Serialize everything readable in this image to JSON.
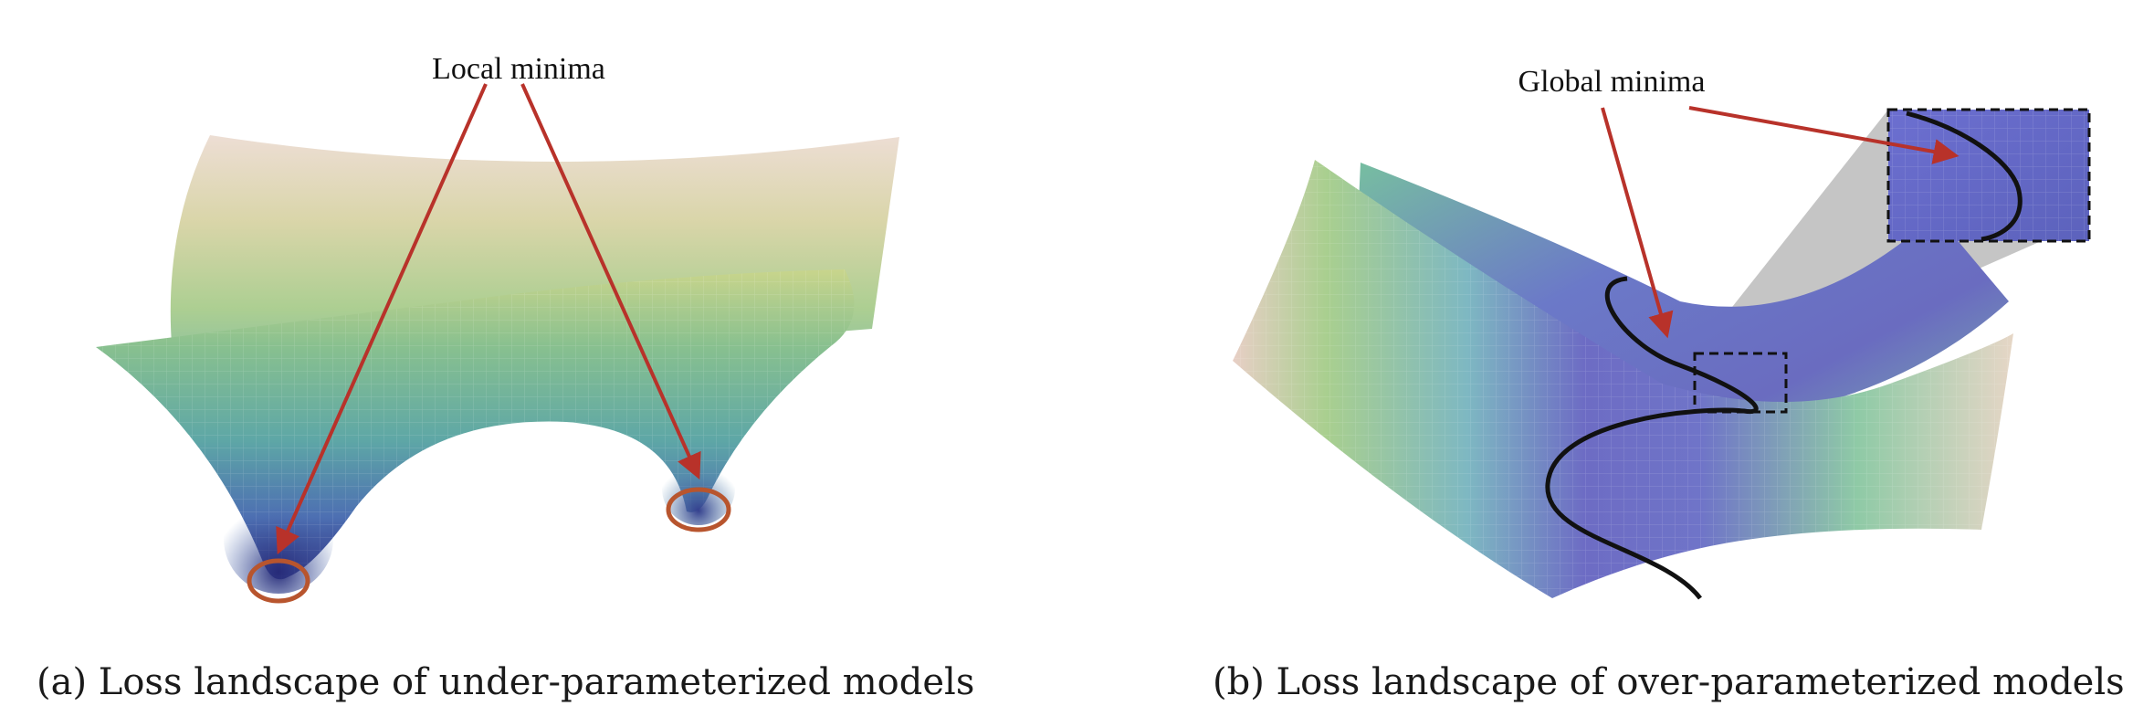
{
  "panel_a": {
    "annotation": "Local minima",
    "caption": "(a) Loss landscape of under-parameterized models"
  },
  "panel_b": {
    "annotation": "Global minima",
    "caption": "(b) Loss landscape of over-parameterized models"
  },
  "colors": {
    "arrow": "#b8322a",
    "circle": "#b8552e",
    "curve": "#111111",
    "surface_low": "#4a3f9a",
    "surface_mid": "#6fb59a",
    "surface_high": "#c8d28a",
    "surface_top": "#ead8cc"
  }
}
